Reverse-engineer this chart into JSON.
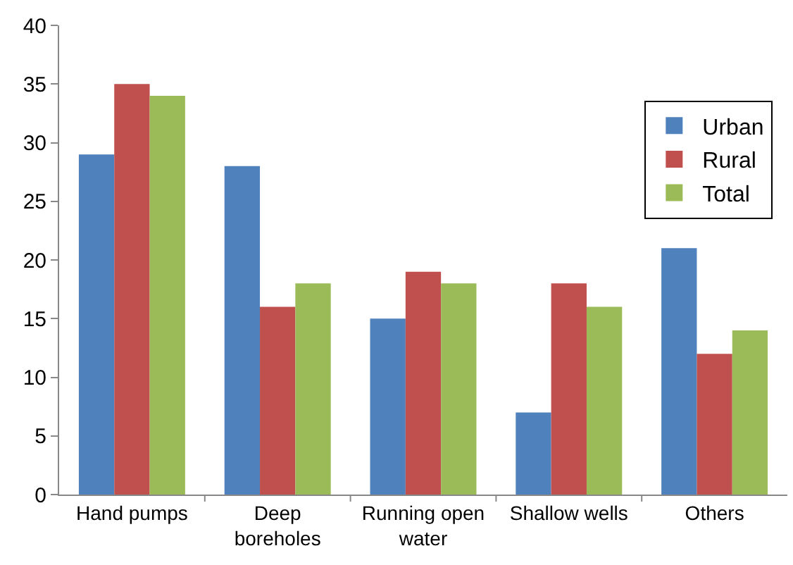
{
  "chart_data": {
    "type": "bar",
    "categories": [
      "Hand pumps",
      "Deep\nboreholes",
      "Running open\nwater",
      "Shallow wells",
      "Others"
    ],
    "series": [
      {
        "name": "Urban",
        "color": "#4f81bd",
        "values": [
          29,
          28,
          15,
          7,
          21
        ]
      },
      {
        "name": "Rural",
        "color": "#c0504d",
        "values": [
          35,
          16,
          19,
          18,
          12
        ]
      },
      {
        "name": "Total",
        "color": "#9bbb59",
        "values": [
          34,
          18,
          18,
          16,
          14
        ]
      }
    ],
    "ylim": [
      0,
      40
    ],
    "yticks": [
      0,
      5,
      10,
      15,
      20,
      25,
      30,
      35,
      40
    ],
    "grid": false,
    "legend": "top right"
  }
}
